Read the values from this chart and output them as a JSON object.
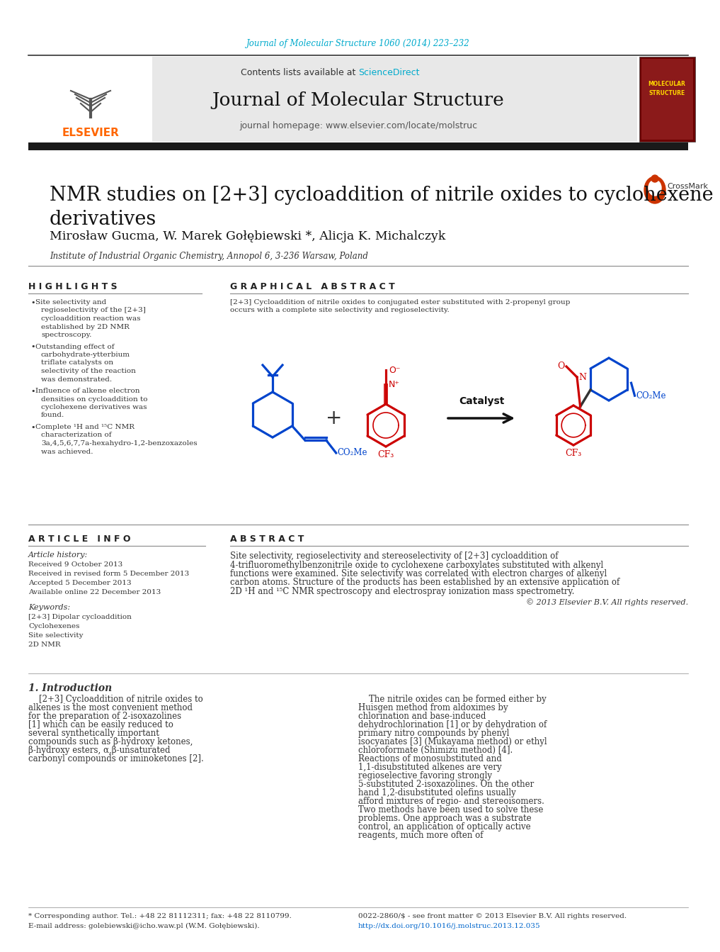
{
  "page_background": "#ffffff",
  "top_journal_ref": "Journal of Molecular Structure 1060 (2014) 223–232",
  "top_journal_ref_color": "#00aacc",
  "header_bg": "#e8e8e8",
  "header_text_contents": "Contents lists available at ",
  "header_sciencedirect": "ScienceDirect",
  "header_sciencedirect_color": "#00aacc",
  "journal_name": "Journal of Molecular Structure",
  "journal_homepage": "journal homepage: www.elsevier.com/locate/molstruc",
  "elsevier_color": "#ff6600",
  "thick_bar_color": "#1a1a1a",
  "article_title": "NMR studies on [2+3] cycloaddition of nitrile oxides to cyclohexene\nderivatives",
  "article_title_fontsize": 20,
  "authors": "Mirosław Gucma, W. Marek Gołębiewski *, Alicja K. Michalczyk",
  "authors_fontsize": 13,
  "affiliation": "Institute of Industrial Organic Chemistry, Annopol 6, 3-236 Warsaw, Poland",
  "affiliation_fontsize": 9,
  "highlights_title": "H I G H L I G H T S",
  "highlights_color": "#222222",
  "highlights_bullets": [
    "Site selectivity and regioselectivity of the [2+3] cycloaddition reaction was established by 2D NMR spectroscopy.",
    "Outstanding effect of carbohydrate-ytterbium triflate catalysts on selectivity of the reaction was demonstrated.",
    "Influence of alkene electron densities on cycloaddition to cyclohexene derivatives was found.",
    "Complete ¹H and ¹⁵C NMR characterization of 3a,4,5,6,7,7a-hexahydro-1,2-benzoxazoles was achieved."
  ],
  "graphical_abstract_title": "G R A P H I C A L   A B S T R A C T",
  "graphical_abstract_text": "[2+3] Cycloaddition of nitrile oxides to conjugated ester substituted with 2-propenyl group occurs with a complete site selectivity and regioselectivity.",
  "article_info_title": "A R T I C L E   I N F O",
  "article_history_title": "Article history:",
  "article_history": "Received 9 October 2013\nReceived in revised form 5 December 2013\nAccepted 5 December 2013\nAvailable online 22 December 2013",
  "keywords_title": "Keywords:",
  "keywords": "[2+3] Dipolar cycloaddition\nCyclohexenes\nSite selectivity\n2D NMR",
  "abstract_title": "A B S T R A C T",
  "abstract_text": "Site selectivity, regioselectivity and stereoselectivity of [2+3] cycloaddition of 4-trifluoromethylbenzonitrile oxide to cyclohexene carboxylates substituted with alkenyl functions were examined. Site selectivity was correlated with electron charges of alkenyl carbon atoms. Structure of the products has been established by an extensive application of 2D ¹H and ¹⁵C NMR spectroscopy and electrospray ionization mass spectrometry.",
  "copyright_text": "© 2013 Elsevier B.V. All rights reserved.",
  "intro_title": "1. Introduction",
  "intro_col1": "[2+3] Cycloaddition of nitrile oxides to alkenes is the most convenient method for the preparation of 2-isoxazolines [1] which can be easily reduced to several synthetically important compounds such as β-hydroxy ketones, β-hydroxy esters, α,β-unsaturated carbonyl compounds or iminoketones [2].",
  "intro_col2": "The nitrile oxides can be formed either by Huisgen method from aldoximes by chlorination and base-induced dehydrochlorination [1] or by dehydration of primary nitro compounds by phenyl isocyanates [3] (Mukayama method) or ethyl chloroformate (Shimizu method) [4].\n    Reactions of monosubstituted and 1,1-disubstituted alkenes are very regioselective favoring strongly 5-substituted 2-isoxazolines. On the other hand 1,2-disubstituted olefins usually afford mixtures of regio- and stereoisomers. Two methods have been used to solve these problems. One approach was a substrate control, an application of optically active reagents, much more often of",
  "footnote_star": "* Corresponding author. Tel.: +48 22 81112311; fax: +48 22 8110799.",
  "footnote_email": "E-mail address: golebiewski@icho.waw.pl (W.M. Gołębiewski).",
  "footnote_issn": "0022-2860/$ - see front matter © 2013 Elsevier B.V. All rights reserved.",
  "footnote_doi": "http://dx.doi.org/10.1016/j.molstruc.2013.12.035",
  "footnote_doi_color": "#0066cc",
  "section_line_color": "#888888",
  "catalyst_text": "Catalyst",
  "bcolor": "#0044cc",
  "rcolor": "#cc0000"
}
